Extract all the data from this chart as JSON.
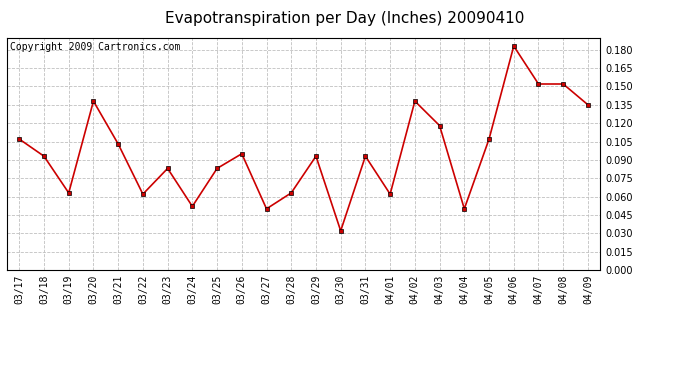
{
  "title": "Evapotranspiration per Day (Inches) 20090410",
  "copyright_text": "Copyright 2009 Cartronics.com",
  "dates": [
    "03/17",
    "03/18",
    "03/19",
    "03/20",
    "03/21",
    "03/22",
    "03/23",
    "03/24",
    "03/25",
    "03/26",
    "03/27",
    "03/28",
    "03/29",
    "03/30",
    "03/31",
    "04/01",
    "04/02",
    "04/03",
    "04/04",
    "04/05",
    "04/06",
    "04/07",
    "04/08",
    "04/09"
  ],
  "values": [
    0.107,
    0.093,
    0.063,
    0.138,
    0.103,
    0.062,
    0.083,
    0.052,
    0.083,
    0.095,
    0.05,
    0.063,
    0.093,
    0.032,
    0.093,
    0.062,
    0.138,
    0.118,
    0.05,
    0.107,
    0.183,
    0.152,
    0.152,
    0.135
  ],
  "line_color": "#cc0000",
  "marker": "s",
  "marker_size": 3,
  "background_color": "#ffffff",
  "grid_color": "#c0c0c0",
  "ylim": [
    0.0,
    0.19
  ],
  "yticks": [
    0.0,
    0.015,
    0.03,
    0.045,
    0.06,
    0.075,
    0.09,
    0.105,
    0.12,
    0.135,
    0.15,
    0.165,
    0.18
  ],
  "title_fontsize": 11,
  "copyright_fontsize": 7,
  "tick_fontsize": 7
}
